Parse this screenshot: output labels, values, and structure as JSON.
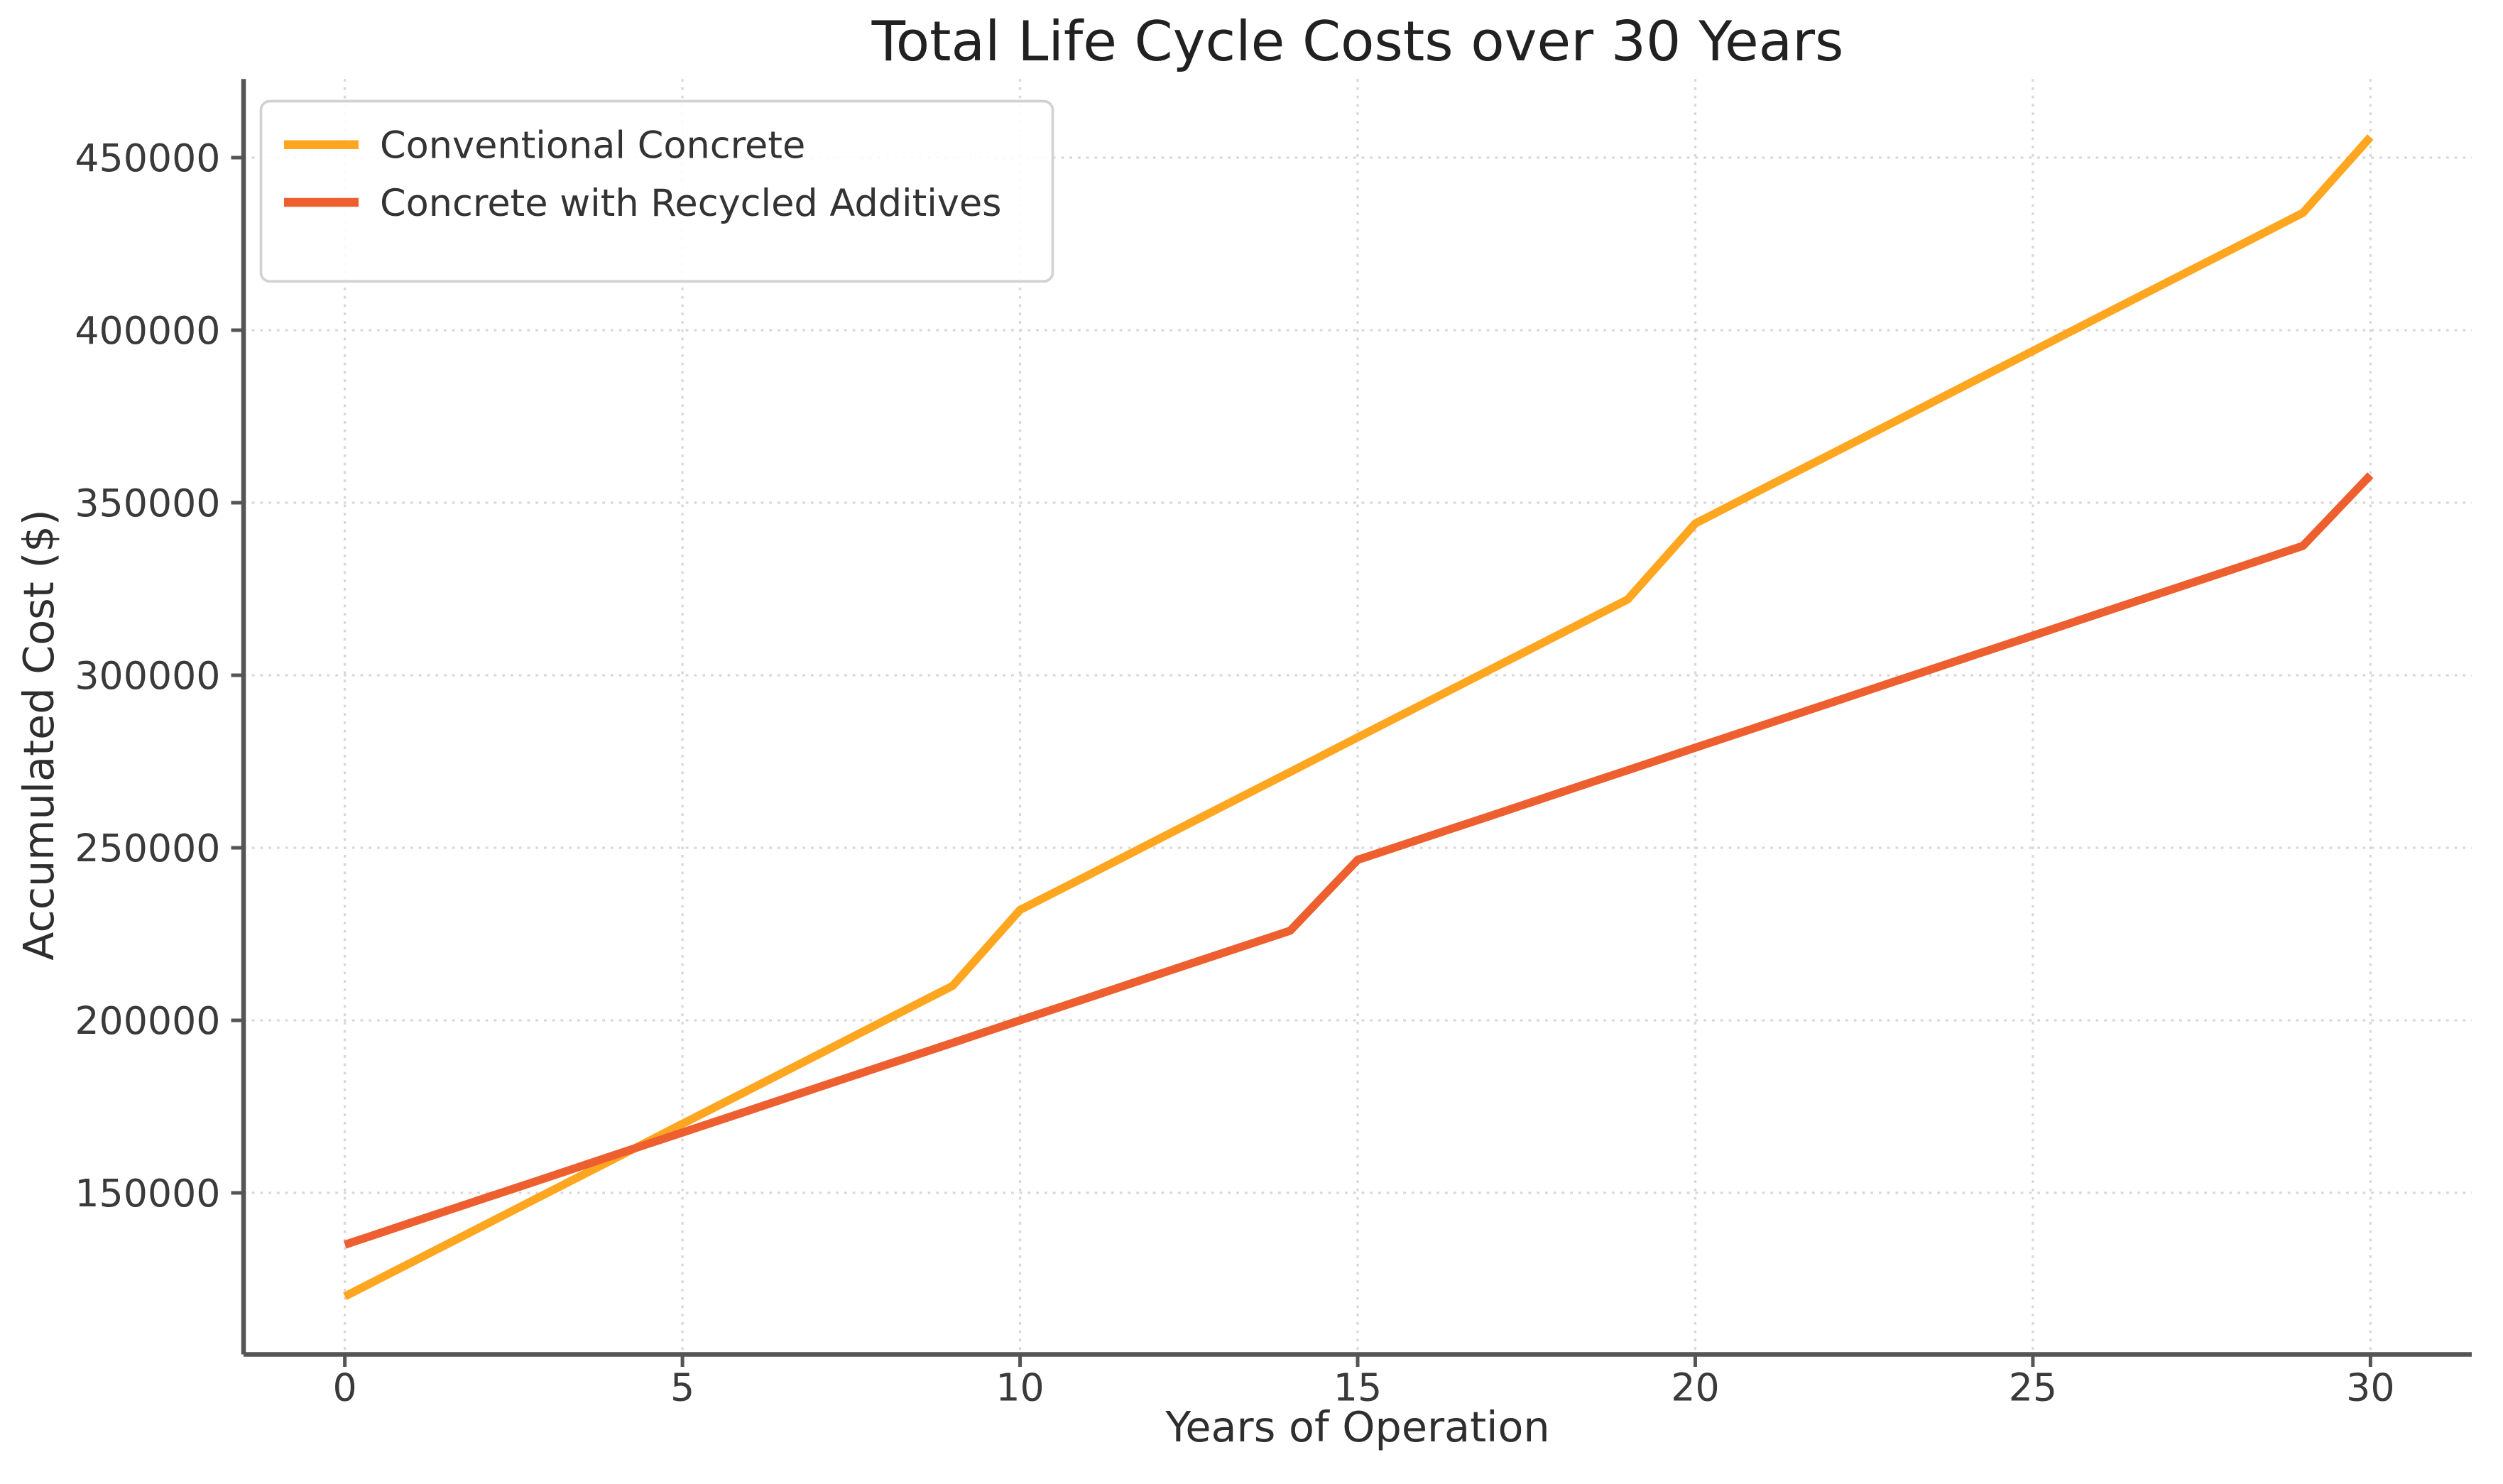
{
  "chart_data": {
    "type": "line",
    "title": "Total Life Cycle Costs over 30 Years",
    "xlabel": "Years of Operation",
    "ylabel": "Accumulated Cost ($)",
    "x": [
      0,
      1,
      2,
      3,
      4,
      5,
      6,
      7,
      8,
      9,
      10,
      11,
      12,
      13,
      14,
      15,
      16,
      17,
      18,
      19,
      20,
      21,
      22,
      23,
      24,
      25,
      26,
      27,
      28,
      29,
      30
    ],
    "series": [
      {
        "name": "Conventional Concrete",
        "color": "#FFA620",
        "values": [
          120000,
          130000,
          140000,
          150000,
          160000,
          170000,
          180000,
          190000,
          200000,
          210000,
          232000,
          242000,
          252000,
          262000,
          272000,
          282000,
          292000,
          302000,
          312000,
          322000,
          344000,
          354000,
          364000,
          374000,
          384000,
          394000,
          404000,
          414000,
          424000,
          434000,
          456000
        ]
      },
      {
        "name": "Concrete with Recycled Additives",
        "color": "#EE5F30",
        "values": [
          135000,
          141500,
          148000,
          154500,
          161000,
          167500,
          174000,
          180500,
          187000,
          193500,
          200000,
          206500,
          213000,
          219500,
          226000,
          246500,
          253000,
          259500,
          266000,
          272500,
          279000,
          285500,
          292000,
          298500,
          305000,
          311500,
          318000,
          324500,
          331000,
          337500,
          358000
        ]
      }
    ],
    "xlim": [
      -1.5,
      31.5
    ],
    "ylim": [
      103200,
      472800
    ],
    "xticks": [
      0,
      5,
      10,
      15,
      20,
      25,
      30
    ],
    "yticks": [
      150000,
      200000,
      250000,
      300000,
      350000,
      400000,
      450000
    ],
    "grid": true,
    "legend_position": "upper-left",
    "colors": {
      "background": "#ffffff",
      "grid": "#d8d8d8",
      "axis": "#555555",
      "tick_text": "#3a3a3a",
      "title_text": "#212121"
    }
  }
}
